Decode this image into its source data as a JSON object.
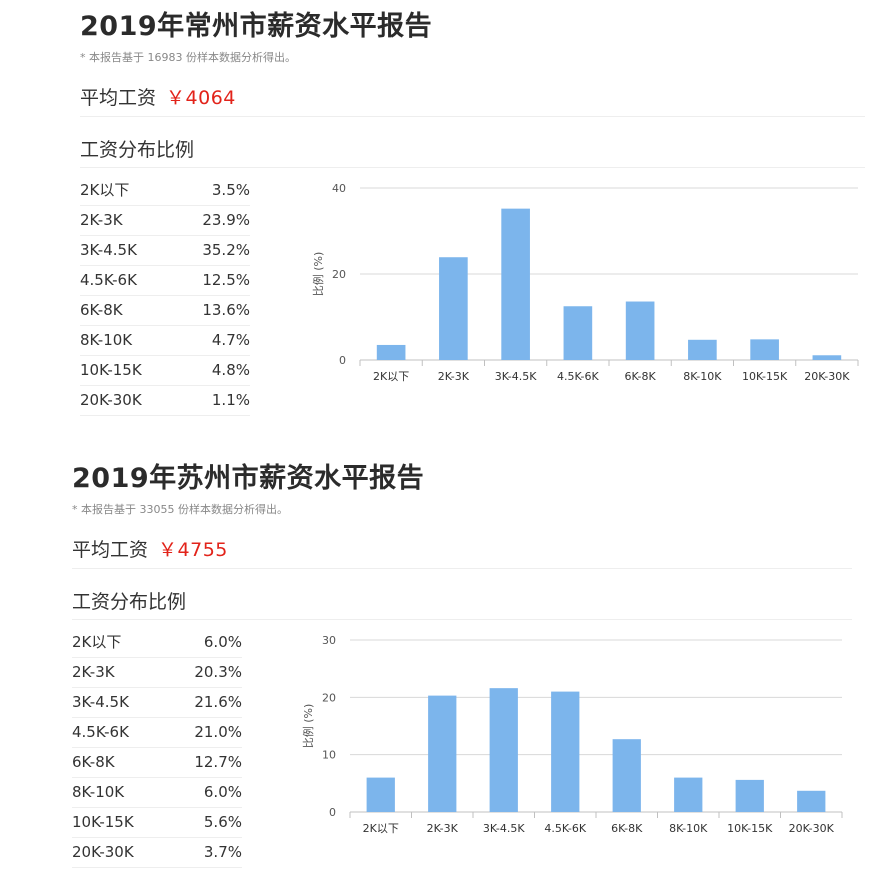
{
  "reports": [
    {
      "title": "2019年常州市薪资水平报告",
      "note": "* 本报告基于 16983 份样本数据分析得出。",
      "avg_label": "平均工资",
      "avg_value": "￥4064",
      "dist_label": "工资分布比例",
      "table": [
        {
          "category": "2K以下",
          "pct": "3.5%"
        },
        {
          "category": "2K-3K",
          "pct": "23.9%"
        },
        {
          "category": "3K-4.5K",
          "pct": "35.2%"
        },
        {
          "category": "4.5K-6K",
          "pct": "12.5%"
        },
        {
          "category": "6K-8K",
          "pct": "13.6%"
        },
        {
          "category": "8K-10K",
          "pct": "4.7%"
        },
        {
          "category": "10K-15K",
          "pct": "4.8%"
        },
        {
          "category": "20K-30K",
          "pct": "1.1%"
        }
      ]
    },
    {
      "title": "2019年苏州市薪资水平报告",
      "note": "* 本报告基于 33055 份样本数据分析得出。",
      "avg_label": "平均工资",
      "avg_value": "￥4755",
      "dist_label": "工资分布比例",
      "table": [
        {
          "category": "2K以下",
          "pct": "6.0%"
        },
        {
          "category": "2K-3K",
          "pct": "20.3%"
        },
        {
          "category": "3K-4.5K",
          "pct": "21.6%"
        },
        {
          "category": "4.5K-6K",
          "pct": "21.0%"
        },
        {
          "category": "6K-8K",
          "pct": "12.7%"
        },
        {
          "category": "8K-10K",
          "pct": "6.0%"
        },
        {
          "category": "10K-15K",
          "pct": "5.6%"
        },
        {
          "category": "20K-30K",
          "pct": "3.7%"
        }
      ]
    }
  ],
  "chart_data": [
    {
      "type": "bar",
      "categories": [
        "2K以下",
        "2K-3K",
        "3K-4.5K",
        "4.5K-6K",
        "6K-8K",
        "8K-10K",
        "10K-15K",
        "20K-30K"
      ],
      "values": [
        3.5,
        23.9,
        35.2,
        12.5,
        13.6,
        4.7,
        4.8,
        1.1
      ],
      "title": "",
      "xlabel": "",
      "ylabel": "比例 (%)",
      "ylim": [
        0,
        40
      ],
      "yticks": [
        0,
        20,
        40
      ],
      "grid": true,
      "color": "#7cb5ec"
    },
    {
      "type": "bar",
      "categories": [
        "2K以下",
        "2K-3K",
        "3K-4.5K",
        "4.5K-6K",
        "6K-8K",
        "8K-10K",
        "10K-15K",
        "20K-30K"
      ],
      "values": [
        6.0,
        20.3,
        21.6,
        21.0,
        12.7,
        6.0,
        5.6,
        3.7
      ],
      "title": "",
      "xlabel": "",
      "ylabel": "比例 (%)",
      "ylim": [
        0,
        30
      ],
      "yticks": [
        0,
        10,
        20,
        30
      ],
      "grid": true,
      "color": "#7cb5ec"
    }
  ]
}
